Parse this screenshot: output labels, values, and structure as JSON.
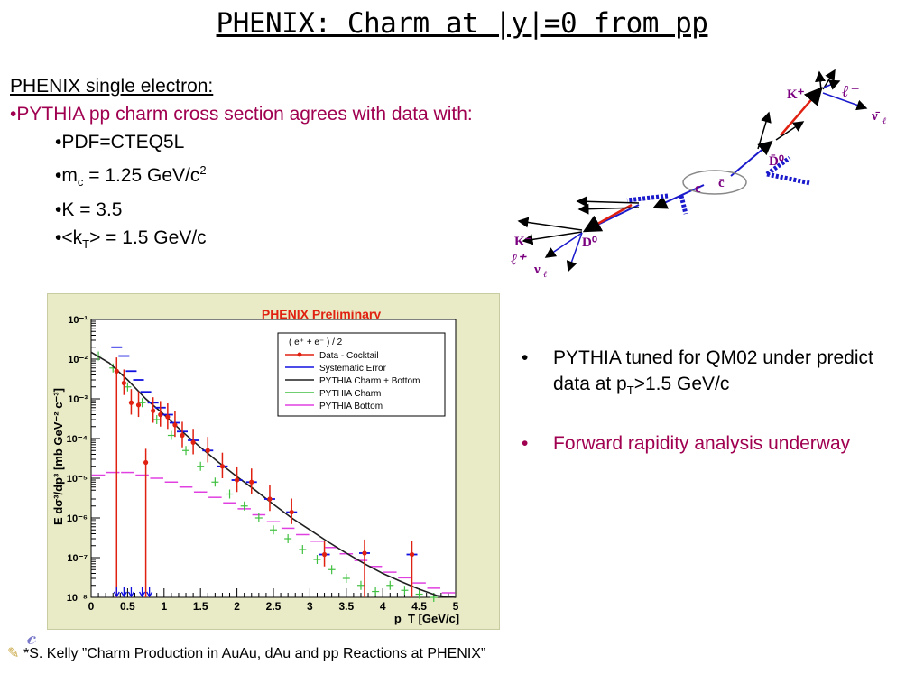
{
  "title": "PHENIX: Charm at |y|=0 from pp",
  "intro": {
    "heading": "PHENIX single electron:",
    "red_line": "•PYTHIA pp charm cross section agrees with data with:",
    "params": {
      "pdf": "•PDF=CTEQ5L",
      "mc_prefix": "•m",
      "mc_sub": "c",
      "mc_value": " = 1.25 GeV/c",
      "mc_sup": "2",
      "k": "•K = 3.5",
      "kt_prefix": "•<k",
      "kt_sub": "T",
      "kt_value": "> = 1.5 GeV/c"
    }
  },
  "diagram": {
    "labels": {
      "k_plus_top": "K⁺",
      "lepton_minus": "ℓ⁻",
      "nubar": "ν̄",
      "nubar_sub": "ℓ",
      "d0bar": "D̄⁰",
      "c_quark": "c",
      "cbar_quark": "c̄",
      "k_minus": "K⁻",
      "d0": "D⁰",
      "lepton_plus": "ℓ⁺",
      "nu": "ν",
      "nu_sub": "ℓ"
    },
    "colors": {
      "label": "#7a0080",
      "blue_track": "#1a1acc",
      "red_track": "#e02010",
      "black_track": "#000000"
    }
  },
  "bullets": {
    "first_a": "PYTHIA tuned for QM02 under predict data at p",
    "first_sub": "T",
    "first_b": ">1.5 GeV/c",
    "second": "Forward rapidity analysis underway",
    "dot": "•"
  },
  "footnote": {
    "text": "*S. Kelly ”Charm Production in AuAu, dAu and pp Reactions at PHENIX”"
  },
  "chart_data": {
    "type": "scatter",
    "title": "PHENIX Preliminary",
    "xlabel": "p_T [GeV/c]",
    "ylabel": "E dσ³/dp³ [mb GeV⁻² c⁻³]",
    "xlim": [
      0,
      5
    ],
    "ylim_log10": [
      -8,
      -1
    ],
    "log_y": true,
    "x_ticks": [
      "0",
      "0.5",
      "1",
      "1.5",
      "2",
      "2.5",
      "3",
      "3.5",
      "4",
      "4.5",
      "5"
    ],
    "y_ticks": [
      "10⁻⁸",
      "10⁻⁷",
      "10⁻⁶",
      "10⁻⁵",
      "10⁻⁴",
      "10⁻³",
      "10⁻²",
      "10⁻¹"
    ],
    "grid": false,
    "legend_position": "top-right",
    "legend_header": "( e⁺ + e⁻ ) / 2",
    "colors": {
      "title": "#e02010",
      "data": "#e02010",
      "systematic": "#1010e0",
      "charm_bottom": "#202020",
      "charm": "#40c040",
      "bottom": "#e040e0"
    },
    "series": [
      {
        "name": "Data - Cocktail",
        "x": [
          0.35,
          0.45,
          0.55,
          0.65,
          0.75,
          0.85,
          0.95,
          1.05,
          1.15,
          1.25,
          1.4,
          1.6,
          1.8,
          2.0,
          2.2,
          2.45,
          2.75,
          3.2,
          3.75,
          4.4
        ],
        "y": [
          0.005,
          0.0025,
          0.0008,
          0.0007,
          2.5e-05,
          0.0005,
          0.0004,
          0.00035,
          0.00022,
          0.00012,
          8e-05,
          5e-05,
          2e-05,
          9e-06,
          8e-06,
          3e-06,
          1.4e-06,
          1.2e-07,
          1.3e-07,
          1.2e-07
        ]
      },
      {
        "name": "Systematic Error",
        "x": [
          0.35,
          0.45,
          0.55,
          0.65,
          0.75,
          0.85,
          0.95,
          1.05,
          1.15,
          1.25,
          1.4,
          1.6,
          1.8,
          2.0,
          2.2,
          2.45,
          2.75,
          3.2,
          3.75,
          4.4
        ],
        "y": [
          0.02,
          0.012,
          0.005,
          0.003,
          0.0015,
          0.0008,
          0.0006,
          0.0004,
          0.00025,
          0.00015,
          9e-05,
          5e-05,
          2e-05,
          9e-06,
          8e-06,
          3e-06,
          1.4e-06,
          1.2e-07,
          1.3e-07,
          1.2e-07
        ]
      },
      {
        "name": "PYTHIA Charm + Bottom",
        "x": [
          0.0,
          0.25,
          0.5,
          0.75,
          1.0,
          1.25,
          1.5,
          1.75,
          2.0,
          2.25,
          2.5,
          2.75,
          3.0,
          3.25,
          3.5,
          3.75,
          4.0,
          4.25,
          4.5,
          4.75,
          5.0
        ],
        "y": [
          0.015,
          0.008,
          0.003,
          0.001,
          0.0004,
          0.00015,
          6e-05,
          2.5e-05,
          1.1e-05,
          5e-06,
          2.2e-06,
          1e-06,
          5e-07,
          2.5e-07,
          1.3e-07,
          7e-08,
          4e-08,
          2.5e-08,
          1.6e-08,
          1.1e-08,
          8e-09
        ]
      },
      {
        "name": "PYTHIA Charm",
        "x": [
          0.1,
          0.3,
          0.5,
          0.7,
          0.9,
          1.1,
          1.3,
          1.5,
          1.7,
          1.9,
          2.1,
          2.3,
          2.5,
          2.7,
          2.9,
          3.1,
          3.3,
          3.5,
          3.7,
          3.9,
          4.1,
          4.3,
          4.5,
          4.7
        ],
        "y": [
          0.012,
          0.006,
          0.002,
          0.0008,
          0.0003,
          0.00012,
          5e-05,
          2e-05,
          8e-06,
          4e-06,
          2e-06,
          1e-06,
          5e-07,
          3e-07,
          1.6e-07,
          9e-08,
          5e-08,
          3e-08,
          2e-08,
          1.4e-08,
          2e-08,
          1.5e-08,
          1.2e-08,
          1e-08
        ]
      },
      {
        "name": "PYTHIA Bottom",
        "x": [
          0.1,
          0.3,
          0.5,
          0.7,
          0.9,
          1.1,
          1.3,
          1.5,
          1.7,
          1.9,
          2.1,
          2.3,
          2.5,
          2.7,
          2.9,
          3.1,
          3.3,
          3.5,
          3.7,
          3.9,
          4.1,
          4.3,
          4.5,
          4.7,
          4.9
        ],
        "y": [
          1.2e-05,
          1.4e-05,
          1.4e-05,
          1.2e-05,
          1e-05,
          8e-06,
          6e-06,
          4.5e-06,
          3.3e-06,
          2.4e-06,
          1.7e-06,
          1.2e-06,
          8e-07,
          5.5e-07,
          3.8e-07,
          2.6e-07,
          1.8e-07,
          1.25e-07,
          8.5e-08,
          6e-08,
          4.3e-08,
          3.1e-08,
          2.3e-08,
          1.7e-08,
          1.3e-08
        ]
      }
    ]
  }
}
